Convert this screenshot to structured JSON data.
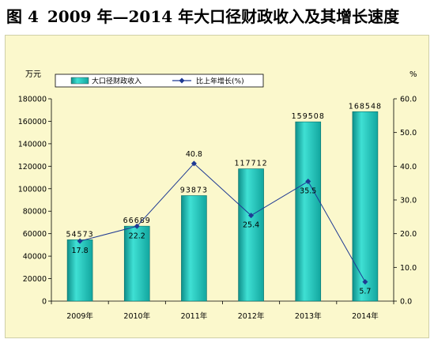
{
  "figure": {
    "label": "图 4",
    "title": "2009 年—2014 年大口径财政收入及其增长速度"
  },
  "chart_data": {
    "type": "bar",
    "categories": [
      "2009年",
      "2010年",
      "2011年",
      "2012年",
      "2013年",
      "2014年"
    ],
    "series": [
      {
        "name": "大口径财政收入",
        "type": "bar",
        "axis": "left",
        "values": [
          54573,
          66689,
          93873,
          117712,
          159508,
          168548
        ],
        "color": "#1bbdb4"
      },
      {
        "name": "比上年增长(%)",
        "type": "line",
        "axis": "right",
        "values": [
          17.8,
          22.2,
          40.8,
          25.4,
          35.5,
          5.7
        ],
        "color": "#1f3a93"
      }
    ],
    "ylabel_left": "万元",
    "ylabel_right": "%",
    "ylim_left": [
      0,
      180000
    ],
    "ylim_right": [
      0,
      60
    ],
    "yticks_left": [
      "0",
      "20000",
      "40000",
      "60000",
      "80000",
      "100000",
      "120000",
      "140000",
      "160000",
      "180000"
    ],
    "yticks_right": [
      "0.0",
      "10.0",
      "20.0",
      "30.0",
      "40.0",
      "50.0",
      "60.0"
    ],
    "legend_position": "top",
    "grid": false
  }
}
